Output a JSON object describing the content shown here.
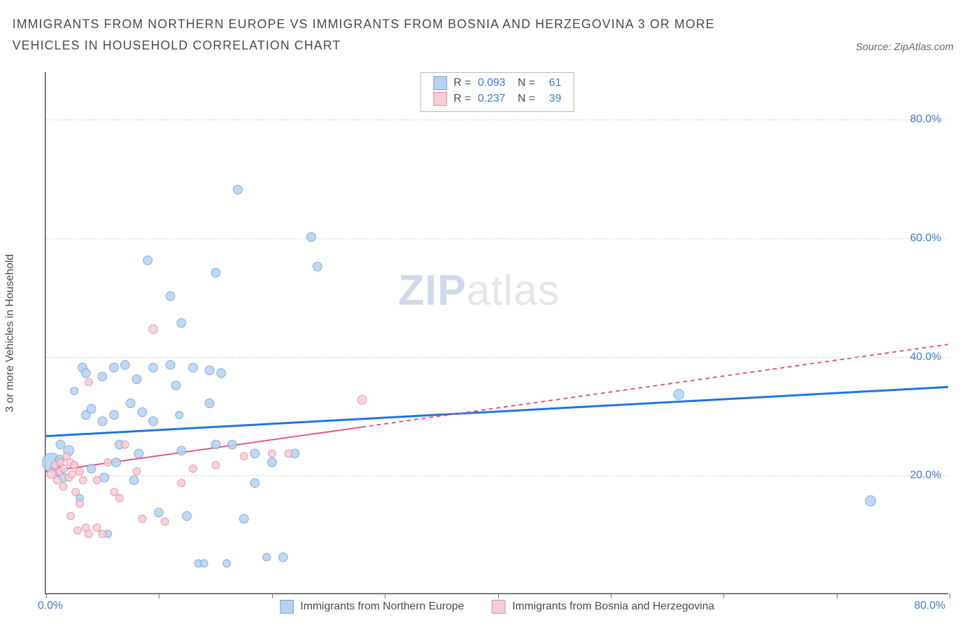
{
  "title": "IMMIGRANTS FROM NORTHERN EUROPE VS IMMIGRANTS FROM BOSNIA AND HERZEGOVINA 3 OR MORE VEHICLES IN HOUSEHOLD CORRELATION CHART",
  "source_label": "Source: ZipAtlas.com",
  "y_axis_label": "3 or more Vehicles in Household",
  "chart": {
    "type": "scatter",
    "xlim": [
      0,
      80
    ],
    "ylim": [
      0,
      88
    ],
    "y_grid_values": [
      20,
      40,
      60,
      80
    ],
    "y_tick_labels": [
      "20.0%",
      "40.0%",
      "60.0%",
      "80.0%"
    ],
    "x_ticks": [
      0,
      10,
      20,
      30,
      40,
      50,
      60,
      70,
      80
    ],
    "x_zero_label": "0.0%",
    "x_max_label": "80.0%",
    "grid_color": "#d8d8d8",
    "axis_color": "#7a7a7a",
    "background_color": "#ffffff",
    "label_fontsize": 16,
    "tick_color": "#3a7bd5"
  },
  "series": [
    {
      "name": "Immigrants from Northern Europe",
      "fill": "#b7d2f0",
      "stroke": "#6fa3de",
      "trend": {
        "x1": 0,
        "y1": 26.5,
        "x2": 80,
        "y2": 34.8,
        "dash_from_x": null,
        "color": "#1e73e8",
        "width": 3
      },
      "r": 0.093,
      "n": 61,
      "points": [
        {
          "x": 0.5,
          "y": 22,
          "r": 14
        },
        {
          "x": 0.8,
          "y": 21,
          "r": 7
        },
        {
          "x": 1.0,
          "y": 20.5,
          "r": 7
        },
        {
          "x": 1.2,
          "y": 22.5,
          "r": 7
        },
        {
          "x": 1.3,
          "y": 25,
          "r": 7
        },
        {
          "x": 1.5,
          "y": 19.5,
          "r": 7
        },
        {
          "x": 2.0,
          "y": 24,
          "r": 8
        },
        {
          "x": 2.5,
          "y": 34,
          "r": 6
        },
        {
          "x": 3.0,
          "y": 16,
          "r": 6
        },
        {
          "x": 3.2,
          "y": 38,
          "r": 7
        },
        {
          "x": 3.5,
          "y": 37,
          "r": 7
        },
        {
          "x": 3.5,
          "y": 30,
          "r": 7
        },
        {
          "x": 4.0,
          "y": 31,
          "r": 7
        },
        {
          "x": 4.0,
          "y": 21,
          "r": 7
        },
        {
          "x": 5.0,
          "y": 36.5,
          "r": 7
        },
        {
          "x": 5.0,
          "y": 29,
          "r": 7
        },
        {
          "x": 5.2,
          "y": 19.5,
          "r": 7
        },
        {
          "x": 5.5,
          "y": 10,
          "r": 6
        },
        {
          "x": 6.0,
          "y": 38,
          "r": 7
        },
        {
          "x": 6.0,
          "y": 30,
          "r": 7
        },
        {
          "x": 6.2,
          "y": 22,
          "r": 7
        },
        {
          "x": 6.5,
          "y": 25,
          "r": 7
        },
        {
          "x": 7.0,
          "y": 38.5,
          "r": 7
        },
        {
          "x": 7.5,
          "y": 32,
          "r": 7
        },
        {
          "x": 7.8,
          "y": 19,
          "r": 7
        },
        {
          "x": 8.0,
          "y": 36,
          "r": 7
        },
        {
          "x": 8.5,
          "y": 30.5,
          "r": 7
        },
        {
          "x": 8.2,
          "y": 23.5,
          "r": 7
        },
        {
          "x": 9.0,
          "y": 56,
          "r": 7
        },
        {
          "x": 9.5,
          "y": 38,
          "r": 7
        },
        {
          "x": 9.5,
          "y": 29,
          "r": 7
        },
        {
          "x": 10.0,
          "y": 13.5,
          "r": 7
        },
        {
          "x": 11.0,
          "y": 50,
          "r": 7
        },
        {
          "x": 11.0,
          "y": 38.5,
          "r": 7
        },
        {
          "x": 11.5,
          "y": 35,
          "r": 7
        },
        {
          "x": 11.8,
          "y": 30,
          "r": 6
        },
        {
          "x": 12.0,
          "y": 45.5,
          "r": 7
        },
        {
          "x": 12.0,
          "y": 24,
          "r": 7
        },
        {
          "x": 12.5,
          "y": 13,
          "r": 7
        },
        {
          "x": 13.0,
          "y": 38,
          "r": 7
        },
        {
          "x": 13.5,
          "y": 5,
          "r": 6
        },
        {
          "x": 14.0,
          "y": 5,
          "r": 6
        },
        {
          "x": 14.5,
          "y": 37.5,
          "r": 7
        },
        {
          "x": 14.5,
          "y": 32,
          "r": 7
        },
        {
          "x": 15.0,
          "y": 25,
          "r": 7
        },
        {
          "x": 15.0,
          "y": 54,
          "r": 7
        },
        {
          "x": 15.5,
          "y": 37,
          "r": 7
        },
        {
          "x": 16.0,
          "y": 5,
          "r": 6
        },
        {
          "x": 16.5,
          "y": 25,
          "r": 7
        },
        {
          "x": 17.0,
          "y": 68,
          "r": 7
        },
        {
          "x": 17.5,
          "y": 12.5,
          "r": 7
        },
        {
          "x": 18.5,
          "y": 23.5,
          "r": 7
        },
        {
          "x": 18.5,
          "y": 18.5,
          "r": 7
        },
        {
          "x": 20.0,
          "y": 22,
          "r": 7
        },
        {
          "x": 19.5,
          "y": 6,
          "r": 6
        },
        {
          "x": 21.0,
          "y": 6,
          "r": 7
        },
        {
          "x": 22.0,
          "y": 23.5,
          "r": 7
        },
        {
          "x": 23.5,
          "y": 60,
          "r": 7
        },
        {
          "x": 24.0,
          "y": 55,
          "r": 7
        },
        {
          "x": 56.0,
          "y": 33.5,
          "r": 8
        },
        {
          "x": 73.0,
          "y": 15.5,
          "r": 8
        }
      ]
    },
    {
      "name": "Immigrants from Bosnia and Herzegovina",
      "fill": "#f6cdd6",
      "stroke": "#e68aa3",
      "trend": {
        "x1": 0,
        "y1": 20.5,
        "x2": 80,
        "y2": 42,
        "dash_from_x": 28,
        "color": "#e7557e",
        "width": 2
      },
      "r": 0.237,
      "n": 39,
      "points": [
        {
          "x": 0.5,
          "y": 20,
          "r": 7
        },
        {
          "x": 0.8,
          "y": 21.5,
          "r": 6
        },
        {
          "x": 1.0,
          "y": 19,
          "r": 6
        },
        {
          "x": 1.2,
          "y": 20.5,
          "r": 6
        },
        {
          "x": 1.3,
          "y": 22,
          "r": 6
        },
        {
          "x": 1.5,
          "y": 18,
          "r": 6
        },
        {
          "x": 1.6,
          "y": 21,
          "r": 6
        },
        {
          "x": 1.8,
          "y": 23,
          "r": 6
        },
        {
          "x": 2.0,
          "y": 19.5,
          "r": 6
        },
        {
          "x": 2.1,
          "y": 22,
          "r": 6
        },
        {
          "x": 2.2,
          "y": 13,
          "r": 6
        },
        {
          "x": 2.3,
          "y": 20,
          "r": 6
        },
        {
          "x": 2.5,
          "y": 21.5,
          "r": 6
        },
        {
          "x": 2.6,
          "y": 17,
          "r": 6
        },
        {
          "x": 2.8,
          "y": 10.5,
          "r": 6
        },
        {
          "x": 3.0,
          "y": 20.5,
          "r": 6
        },
        {
          "x": 3.0,
          "y": 15,
          "r": 6
        },
        {
          "x": 3.3,
          "y": 19,
          "r": 6
        },
        {
          "x": 3.5,
          "y": 11,
          "r": 6
        },
        {
          "x": 3.8,
          "y": 10,
          "r": 6
        },
        {
          "x": 3.8,
          "y": 35.5,
          "r": 6
        },
        {
          "x": 4.5,
          "y": 11,
          "r": 6
        },
        {
          "x": 4.5,
          "y": 19,
          "r": 6
        },
        {
          "x": 5.0,
          "y": 10,
          "r": 6
        },
        {
          "x": 5.5,
          "y": 22,
          "r": 6
        },
        {
          "x": 6.0,
          "y": 17,
          "r": 6
        },
        {
          "x": 6.5,
          "y": 16,
          "r": 6
        },
        {
          "x": 7.0,
          "y": 25,
          "r": 6
        },
        {
          "x": 8.0,
          "y": 20.5,
          "r": 6
        },
        {
          "x": 8.5,
          "y": 12.5,
          "r": 6
        },
        {
          "x": 9.5,
          "y": 44.5,
          "r": 7
        },
        {
          "x": 10.5,
          "y": 12,
          "r": 6
        },
        {
          "x": 12.0,
          "y": 18.5,
          "r": 6
        },
        {
          "x": 13.0,
          "y": 21,
          "r": 6
        },
        {
          "x": 15.0,
          "y": 21.5,
          "r": 6
        },
        {
          "x": 17.5,
          "y": 23,
          "r": 6
        },
        {
          "x": 20.0,
          "y": 23.5,
          "r": 6
        },
        {
          "x": 21.5,
          "y": 23.5,
          "r": 6
        },
        {
          "x": 28.0,
          "y": 32.5,
          "r": 7
        }
      ]
    }
  ],
  "stats_legend": [
    {
      "swatch_fill": "#b7d2f0",
      "swatch_stroke": "#6fa3de",
      "r": "0.093",
      "n": "61"
    },
    {
      "swatch_fill": "#f6cdd6",
      "swatch_stroke": "#e68aa3",
      "r": "0.237",
      "n": "39"
    }
  ],
  "bottom_legend": [
    {
      "swatch_fill": "#b7d2f0",
      "swatch_stroke": "#6fa3de",
      "label": "Immigrants from Northern Europe"
    },
    {
      "swatch_fill": "#f6cdd6",
      "swatch_stroke": "#e68aa3",
      "label": "Immigrants from Bosnia and Herzegovina"
    }
  ],
  "watermark": {
    "bold": "ZIP",
    "rest": "atlas"
  }
}
